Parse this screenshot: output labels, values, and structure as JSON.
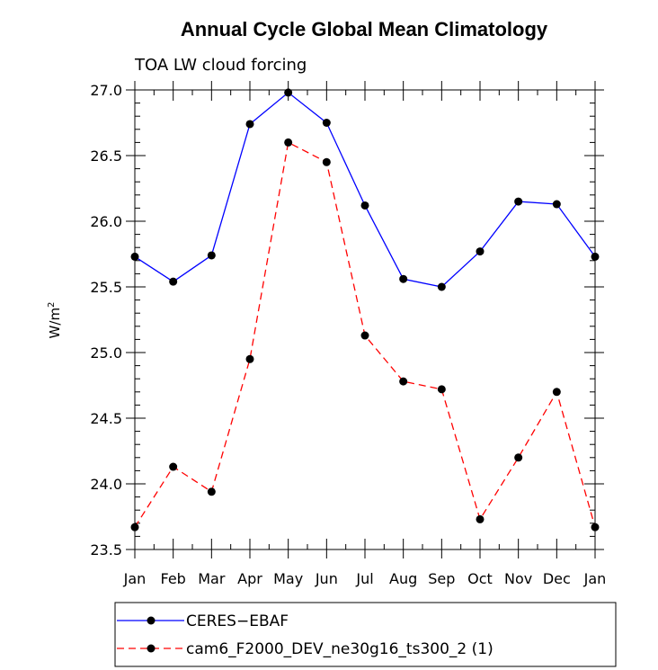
{
  "chart_data": {
    "type": "line",
    "title": "Annual Cycle Global Mean Climatology",
    "subtitle": "TOA LW cloud forcing",
    "xlabel": "",
    "ylabel": "W/m",
    "ylabel_sup": "2",
    "categories": [
      "Jan",
      "Feb",
      "Mar",
      "Apr",
      "May",
      "Jun",
      "Jul",
      "Aug",
      "Sep",
      "Oct",
      "Nov",
      "Dec",
      "Jan"
    ],
    "ylim": [
      23.5,
      27.0
    ],
    "yticks": [
      23.5,
      24.0,
      24.5,
      25.0,
      25.5,
      26.0,
      26.5,
      27.0
    ],
    "ytick_labels": [
      "23.5",
      "24.0",
      "24.5",
      "25.0",
      "25.5",
      "26.0",
      "26.5",
      "27.0"
    ],
    "series": [
      {
        "name": "CERES−EBAF",
        "color": "#0000ff",
        "dash": "solid",
        "values": [
          25.73,
          25.54,
          25.74,
          26.74,
          26.98,
          26.75,
          26.12,
          25.56,
          25.5,
          25.77,
          26.15,
          26.13,
          25.73
        ]
      },
      {
        "name": "cam6_F2000_DEV_ne30g16_ts300_2 (1)",
        "color": "#ff0000",
        "dash": "dashed",
        "values": [
          23.67,
          24.13,
          23.94,
          24.95,
          26.6,
          26.45,
          25.13,
          24.78,
          24.72,
          23.73,
          24.2,
          24.7,
          23.67
        ]
      }
    ]
  }
}
